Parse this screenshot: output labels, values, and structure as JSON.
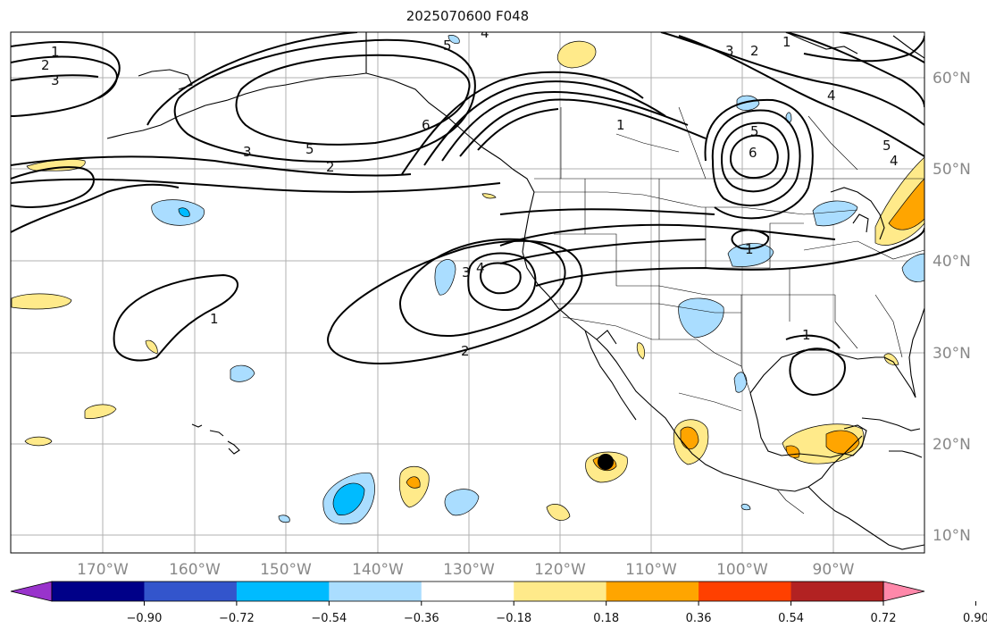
{
  "title": "2025070600 F048",
  "lon_ticks": [
    "170°W",
    "160°W",
    "150°W",
    "140°W",
    "130°W",
    "120°W",
    "110°W",
    "100°W",
    "90°W"
  ],
  "lat_ticks": [
    "60°N",
    "50°N",
    "40°N",
    "30°N",
    "20°N",
    "10°N"
  ],
  "colorbar": {
    "colors": [
      "#9933cc",
      "#000088",
      "#3355cc",
      "#00bbff",
      "#aaddff",
      "#ffffff",
      "#ffea8a",
      "#ffa500",
      "#ff4000",
      "#b22222",
      "#ff88aa"
    ],
    "tick_labels": [
      "−0.90",
      "−0.72",
      "−0.54",
      "−0.36",
      "−0.18",
      "0.18",
      "0.36",
      "0.54",
      "0.72",
      "0.90"
    ]
  },
  "contour_labels": [
    "1",
    "2",
    "3",
    "5",
    "3",
    "2",
    "6",
    "1",
    "3",
    "2",
    "1",
    "4",
    "5",
    "4",
    "6",
    "5",
    "3",
    "4",
    "1",
    "2",
    "1",
    "1",
    "4",
    "5"
  ]
}
